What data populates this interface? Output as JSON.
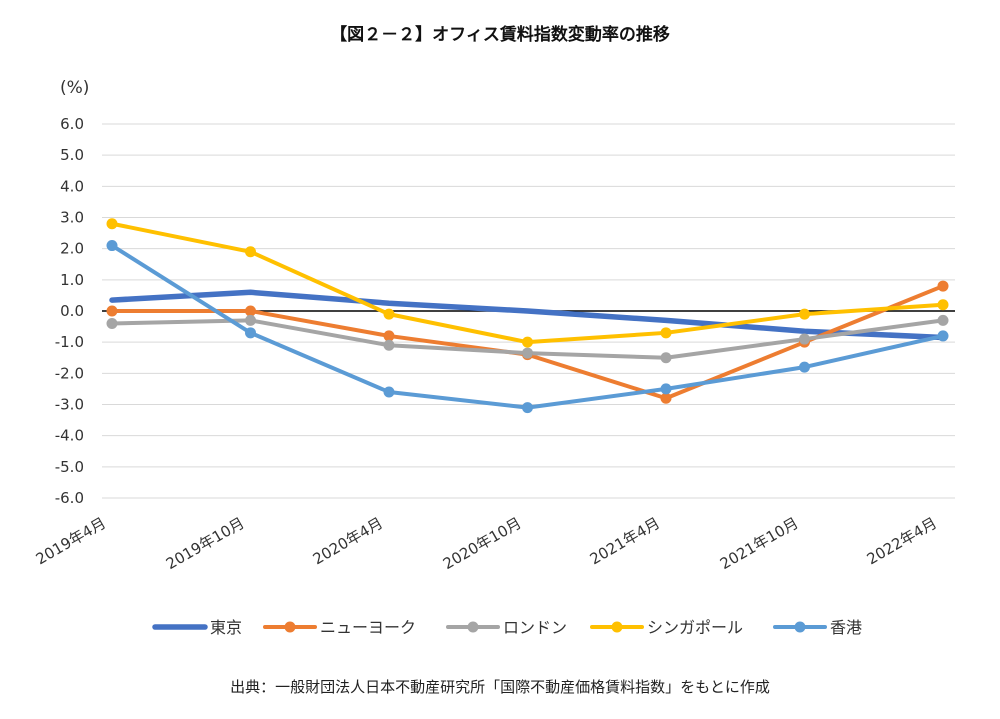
{
  "title": "【図２－２】オフィス賃料指数変動率の推移",
  "unit": "(%)",
  "source": "出典：一般財団法人日本不動産研究所「国際不動産価格賃料指数」をもとに作成",
  "chart_data": {
    "type": "line",
    "title": "【図２－２】オフィス賃料指数変動率の推移",
    "ylabel": "(%)",
    "xlabel": "",
    "ylim": [
      -6.0,
      6.0
    ],
    "y_ticks": [
      "6.0",
      "5.0",
      "4.0",
      "3.0",
      "2.0",
      "1.0",
      "0.0",
      "-1.0",
      "-2.0",
      "-3.0",
      "-4.0",
      "-5.0",
      "-6.0"
    ],
    "grid": true,
    "legend_position": "bottom",
    "categories": [
      "2019年4月",
      "2019年10月",
      "2020年4月",
      "2020年10月",
      "2021年4月",
      "2021年10月",
      "2022年4月"
    ],
    "series": [
      {
        "name": "東京",
        "color": "#4472C4",
        "markers": false,
        "values": [
          0.35,
          0.6,
          0.25,
          0.0,
          -0.3,
          -0.65,
          -0.85
        ]
      },
      {
        "name": "ニューヨーク",
        "color": "#ED7D31",
        "markers": true,
        "values": [
          0.0,
          0.0,
          -0.8,
          -1.4,
          -2.8,
          -1.0,
          0.8
        ]
      },
      {
        "name": "ロンドン",
        "color": "#A5A5A5",
        "markers": true,
        "values": [
          -0.4,
          -0.3,
          -1.1,
          -1.35,
          -1.5,
          -0.9,
          -0.3
        ]
      },
      {
        "name": "シンガポール",
        "color": "#FFC000",
        "markers": true,
        "values": [
          2.8,
          1.9,
          -0.1,
          -1.0,
          -0.7,
          -0.1,
          0.2
        ]
      },
      {
        "name": "香港",
        "color": "#5B9BD5",
        "markers": true,
        "values": [
          2.1,
          -0.7,
          -2.6,
          -3.1,
          -2.5,
          -1.8,
          -0.8
        ]
      }
    ]
  }
}
